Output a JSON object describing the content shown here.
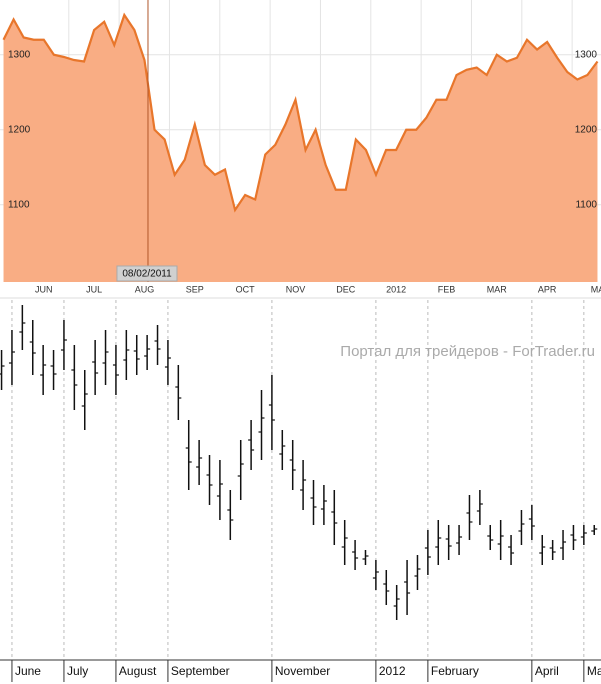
{
  "chart_data": [
    {
      "type": "area",
      "x": [
        -0.8,
        -0.6,
        -0.4,
        -0.2,
        0,
        0.2,
        0.4,
        0.6,
        0.8,
        1.0,
        1.2,
        1.4,
        1.6,
        1.8,
        2.0,
        2.2,
        2.4,
        2.6,
        2.8,
        3.0,
        3.2,
        3.4,
        3.6,
        3.8,
        4.0,
        4.2,
        4.4,
        4.6,
        4.8,
        5.0,
        5.2,
        5.4,
        5.6,
        5.8,
        6.0,
        6.2,
        6.4,
        6.6,
        6.8,
        7.0,
        7.2,
        7.4,
        7.6,
        7.8,
        8.0,
        8.2,
        8.4,
        8.6,
        8.8,
        9.0,
        9.2,
        9.4,
        9.6,
        9.8,
        10.0,
        10.2,
        10.4,
        10.6,
        10.8,
        11.0
      ],
      "values": [
        1320,
        1347,
        1323,
        1320,
        1320,
        1300,
        1297,
        1293,
        1291,
        1333,
        1344,
        1313,
        1353,
        1333,
        1293,
        1200,
        1187,
        1140,
        1160,
        1207,
        1153,
        1140,
        1147,
        1093,
        1113,
        1107,
        1167,
        1180,
        1207,
        1240,
        1173,
        1200,
        1153,
        1120,
        1120,
        1187,
        1173,
        1140,
        1173,
        1173,
        1200,
        1200,
        1216,
        1240,
        1240,
        1273,
        1280,
        1283,
        1273,
        1300,
        1291,
        1296,
        1320,
        1307,
        1317,
        1296,
        1277,
        1267,
        1273,
        1291
      ],
      "color": "#e8762b",
      "fill_color": "#f9ad84",
      "xlim": [
        -0.87,
        11.07
      ],
      "ylim": [
        997,
        1373
      ],
      "xticks": [
        {
          "value": 0,
          "label": "JUN"
        },
        {
          "value": 1,
          "label": "JUL"
        },
        {
          "value": 2,
          "label": "AUG"
        },
        {
          "value": 3,
          "label": "SEP"
        },
        {
          "value": 4,
          "label": "OCT"
        },
        {
          "value": 5,
          "label": "NOV"
        },
        {
          "value": 6,
          "label": "DEC"
        },
        {
          "value": 7,
          "label": "2012"
        },
        {
          "value": 8,
          "label": "FEB"
        },
        {
          "value": 9,
          "label": "MAR"
        },
        {
          "value": 10,
          "label": "APR"
        },
        {
          "value": 11,
          "label": "MA"
        }
      ],
      "yticks": [
        1100,
        1200,
        1300
      ],
      "grid": true,
      "marker": {
        "x": 2.07,
        "label": "08/02/2011"
      }
    },
    {
      "type": "ohlc",
      "x": [
        -0.2,
        0,
        0.2,
        0.4,
        0.6,
        0.8,
        1.0,
        1.2,
        1.4,
        1.6,
        1.8,
        2.0,
        2.2,
        2.4,
        2.6,
        2.8,
        3.0,
        3.2,
        3.4,
        3.6,
        3.8,
        4.0,
        4.2,
        4.4,
        4.6,
        4.8,
        5.0,
        5.2,
        5.4,
        5.6,
        5.8,
        6.0,
        6.2,
        6.4,
        6.6,
        6.8,
        7.0,
        7.2,
        7.4,
        7.6,
        7.8,
        8.0,
        8.2,
        8.4,
        8.6,
        8.8,
        9.0,
        9.2,
        9.4,
        9.6,
        9.8,
        10.0,
        10.2,
        10.4,
        10.6,
        10.8,
        11.0,
        11.2
      ],
      "high": [
        310,
        330,
        355,
        340,
        315,
        310,
        340,
        315,
        290,
        320,
        330,
        315,
        330,
        325,
        325,
        335,
        320,
        295,
        240,
        220,
        205,
        200,
        170,
        220,
        240,
        270,
        285,
        230,
        220,
        200,
        180,
        175,
        170,
        140,
        120,
        110,
        100,
        90,
        75,
        100,
        105,
        130,
        140,
        135,
        135,
        165,
        170,
        135,
        140,
        125,
        150,
        155,
        125,
        120,
        130,
        135,
        135,
        135
      ],
      "low": [
        270,
        275,
        310,
        285,
        265,
        270,
        290,
        250,
        230,
        265,
        275,
        265,
        280,
        285,
        290,
        295,
        275,
        240,
        170,
        175,
        155,
        140,
        120,
        160,
        190,
        200,
        210,
        190,
        170,
        150,
        135,
        135,
        115,
        95,
        90,
        95,
        70,
        55,
        40,
        45,
        70,
        85,
        95,
        100,
        105,
        120,
        135,
        110,
        100,
        95,
        115,
        120,
        95,
        100,
        100,
        110,
        115,
        125
      ],
      "open": [
        286,
        297,
        328,
        318,
        285,
        294,
        310,
        290,
        254,
        298,
        297,
        295,
        300,
        309,
        304,
        319,
        293,
        273,
        212,
        193,
        185,
        164,
        150,
        184,
        220,
        228,
        255,
        206,
        200,
        170,
        162,
        151,
        148,
        113,
        108,
        101,
        82,
        76,
        54,
        78,
        84,
        112,
        113,
        121,
        117,
        147,
        149,
        124,
        116,
        113,
        129,
        141,
        107,
        112,
        112,
        125,
        123,
        129
      ],
      "close": [
        294,
        308,
        337,
        307,
        295,
        286,
        320,
        275,
        266,
        287,
        308,
        285,
        310,
        301,
        311,
        311,
        302,
        262,
        198,
        202,
        175,
        176,
        140,
        196,
        210,
        242,
        240,
        214,
        190,
        180,
        153,
        159,
        137,
        122,
        102,
        104,
        88,
        69,
        61,
        67,
        91,
        103,
        122,
        114,
        123,
        138,
        156,
        120,
        124,
        107,
        136,
        134,
        113,
        108,
        118,
        120,
        127,
        131
      ],
      "color": "#111111",
      "xlim": [
        -0.23,
        11.33
      ],
      "ylim": [
        0,
        360
      ],
      "xticks": [
        {
          "value": 0,
          "label": "June"
        },
        {
          "value": 1,
          "label": "July"
        },
        {
          "value": 2,
          "label": "August"
        },
        {
          "value": 3,
          "label": "September"
        },
        {
          "value": 5,
          "label": "November"
        },
        {
          "value": 7,
          "label": "2012"
        },
        {
          "value": 8,
          "label": "February"
        },
        {
          "value": 10,
          "label": "April"
        },
        {
          "value": 11,
          "label": "Ma"
        }
      ],
      "grid": true,
      "annotation": "Портал для трейдеров - ForTrader.ru"
    }
  ]
}
